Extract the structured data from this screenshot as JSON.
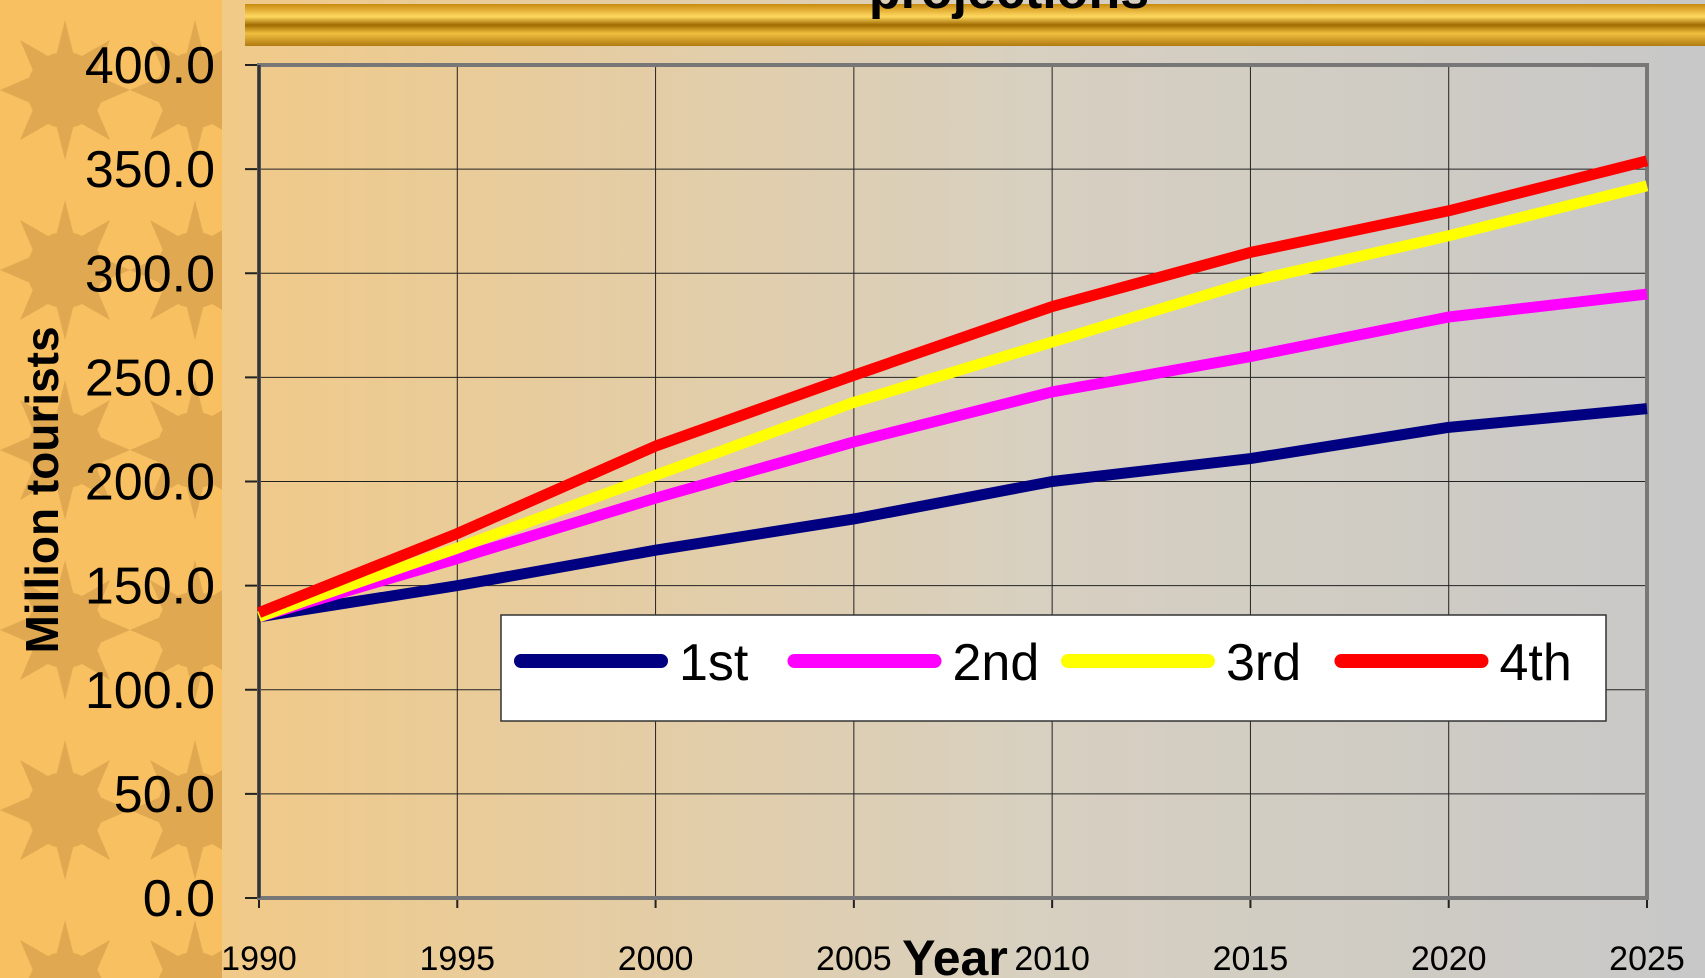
{
  "chart_data": {
    "type": "line",
    "title": "projections",
    "x_label": "Year",
    "y_label": "Million tourists",
    "x": [
      1990,
      1995,
      2000,
      2005,
      2010,
      2015,
      2020,
      2025
    ],
    "series": [
      {
        "name": "1st",
        "color": "#000080",
        "values": [
          135,
          150,
          167,
          182,
          200,
          211,
          226,
          235
        ]
      },
      {
        "name": "2nd",
        "color": "#ff00ff",
        "values": [
          135,
          163,
          192,
          219,
          243,
          260,
          279,
          290
        ]
      },
      {
        "name": "3rd",
        "color": "#ffff00",
        "values": [
          135,
          168,
          203,
          238,
          267,
          296,
          318,
          342
        ]
      },
      {
        "name": "4th",
        "color": "#ff0000",
        "values": [
          137,
          175,
          217,
          251,
          284,
          310,
          330,
          354
        ]
      }
    ],
    "xlim": [
      1990,
      2025
    ],
    "xticks": [
      1990,
      1995,
      2000,
      2005,
      2010,
      2015,
      2020,
      2025
    ],
    "ylim": [
      0,
      400
    ],
    "yticks": [
      {
        "value": 0,
        "label": "0.0"
      },
      {
        "value": 50,
        "label": "50.0"
      },
      {
        "value": 100,
        "label": "100.0"
      },
      {
        "value": 150,
        "label": "150.0"
      },
      {
        "value": 200,
        "label": "200.0"
      },
      {
        "value": 250,
        "label": "250.0"
      },
      {
        "value": 300,
        "label": "300.0"
      },
      {
        "value": 350,
        "label": "350.0"
      },
      {
        "value": 400,
        "label": "400.0"
      }
    ],
    "grid": true,
    "legend": "inside"
  }
}
